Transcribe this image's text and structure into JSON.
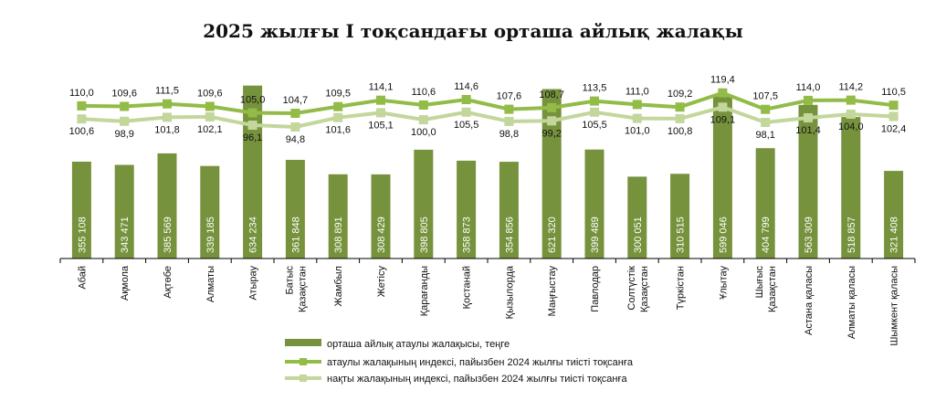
{
  "title": "2025 жылғы I тоқсандағы орташа айлық жалақы",
  "colors": {
    "bar": "#76923c",
    "nominal_line": "#92bb47",
    "real_line": "#c3d69b",
    "axis": "#000000"
  },
  "chart_data": {
    "type": "bar",
    "title": "2025 жылғы I тоқсандағы орташа айлық жалақы",
    "categories": [
      [
        "Абай"
      ],
      [
        "Ақмола"
      ],
      [
        "Ақтөбе"
      ],
      [
        "Алматы"
      ],
      [
        "Атырау"
      ],
      [
        "Батыс",
        "Қазақстан"
      ],
      [
        "Жамбыл"
      ],
      [
        "Жетісу"
      ],
      [
        "Қарағанды"
      ],
      [
        "Қостанай"
      ],
      [
        "Қызылорда"
      ],
      [
        "Маңғыстау"
      ],
      [
        "Павлодар"
      ],
      [
        "Солтүстік",
        "Қазақстан"
      ],
      [
        "Түркістан"
      ],
      [
        "Ұлытау"
      ],
      [
        "Шығыс",
        "Қазақстан"
      ],
      [
        "Астана қаласы"
      ],
      [
        "Алматы қаласы"
      ],
      [
        "Шымкент қаласы"
      ]
    ],
    "bar_series": {
      "name": "орташа айлық атаулы жалақысы, теңге",
      "values": [
        355108,
        343471,
        385569,
        339185,
        634234,
        361848,
        308891,
        308429,
        398805,
        358873,
        354856,
        621320,
        399489,
        300051,
        310515,
        599046,
        404799,
        563309,
        518857,
        321408
      ],
      "labels": [
        "355 108",
        "343 471",
        "385 569",
        "339 185",
        "634 234",
        "361 848",
        "308 891",
        "308 429",
        "398 805",
        "358 873",
        "354 856",
        "621 320",
        "399 489",
        "300 051",
        "310 515",
        "599 046",
        "404 799",
        "563 309",
        "518 857",
        "321 408"
      ],
      "ylim": [
        0,
        680000
      ]
    },
    "line_series": [
      {
        "name": "атаулы жалақының индексі, пайызбен 2024 жылғы тиісті тоқсанға",
        "values": [
          110.0,
          109.6,
          111.5,
          109.6,
          105.0,
          104.7,
          109.5,
          114.1,
          110.6,
          114.6,
          107.6,
          108.7,
          113.5,
          111.0,
          109.2,
          119.4,
          107.5,
          114.0,
          114.2,
          110.5
        ],
        "labels": [
          "110,0",
          "109,6",
          "111,5",
          "109,6",
          "105,0",
          "104,7",
          "109,5",
          "114,1",
          "110,6",
          "114,6",
          "107,6",
          "108,7",
          "113,5",
          "111,0",
          "109,2",
          "119,4",
          "107,5",
          "114,0",
          "114,2",
          "110,5"
        ]
      },
      {
        "name": "нақты жалақының индексі, пайызбен 2024 жылғы тиісті тоқсанға",
        "values": [
          100.6,
          98.9,
          101.8,
          102.1,
          96.1,
          94.8,
          101.6,
          105.1,
          100.0,
          105.5,
          98.8,
          99.2,
          105.5,
          101.0,
          100.8,
          109.1,
          98.1,
          101.4,
          104.0,
          102.4
        ],
        "labels": [
          "100,6",
          "98,9",
          "101,8",
          "102,1",
          "96,1",
          "94,8",
          "101,6",
          "105,1",
          "100,0",
          "105,5",
          "98,8",
          "99,2",
          "105,5",
          "101,0",
          "100,8",
          "109,1",
          "98,1",
          "101,4",
          "104,0",
          "102,4"
        ]
      }
    ],
    "line_ylim": [
      0,
      160
    ],
    "grid": false,
    "legend_position": "bottom"
  }
}
